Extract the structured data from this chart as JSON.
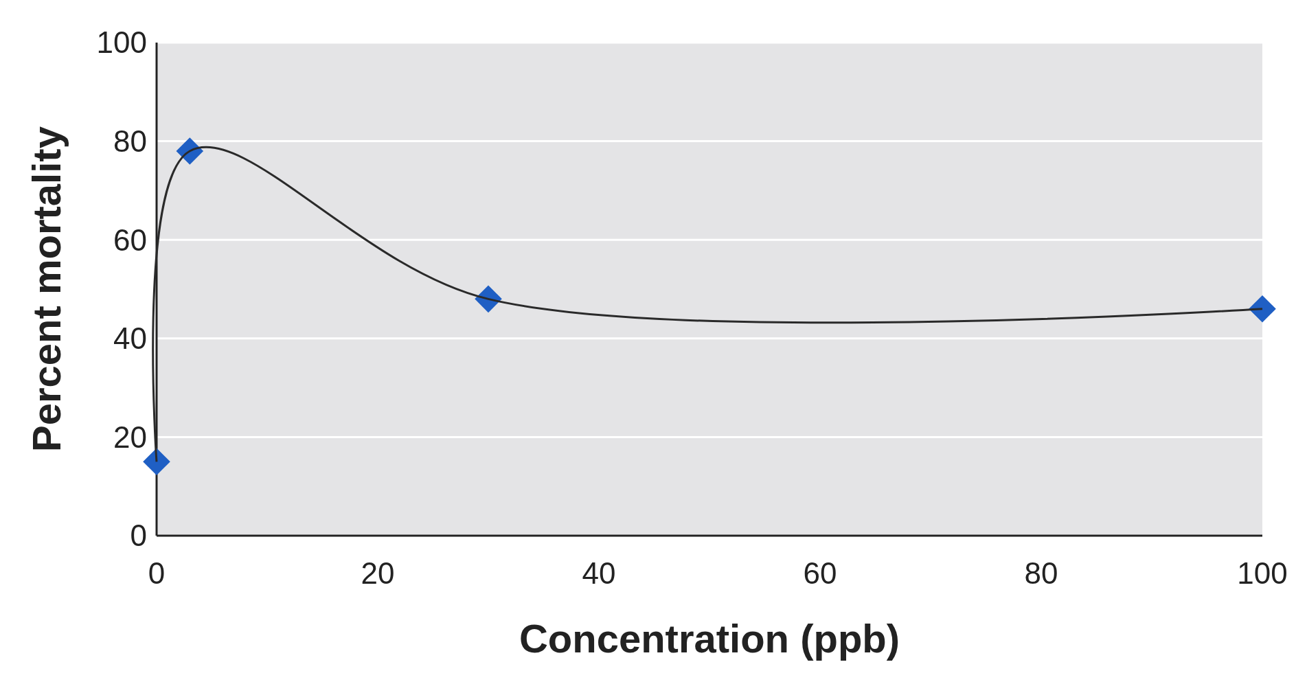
{
  "chart_data": {
    "type": "line",
    "xlabel": "Concentration (ppb)",
    "ylabel": "Percent mortality",
    "x": [
      0,
      3,
      30,
      100
    ],
    "series": [
      {
        "type": "scatter",
        "marker": "diamond",
        "color": "#1f5fc4",
        "values": [
          15,
          78,
          48,
          46
        ]
      },
      {
        "marker": "none",
        "color": "#2a2a2a",
        "values": [
          15,
          78,
          48,
          46
        ]
      }
    ],
    "xlim": [
      0,
      100
    ],
    "xticks": [
      0,
      20,
      40,
      60,
      80,
      100
    ],
    "ylim": [
      0,
      100
    ],
    "yticks": [
      0,
      20,
      40,
      60,
      80,
      100
    ],
    "grid": "y"
  }
}
